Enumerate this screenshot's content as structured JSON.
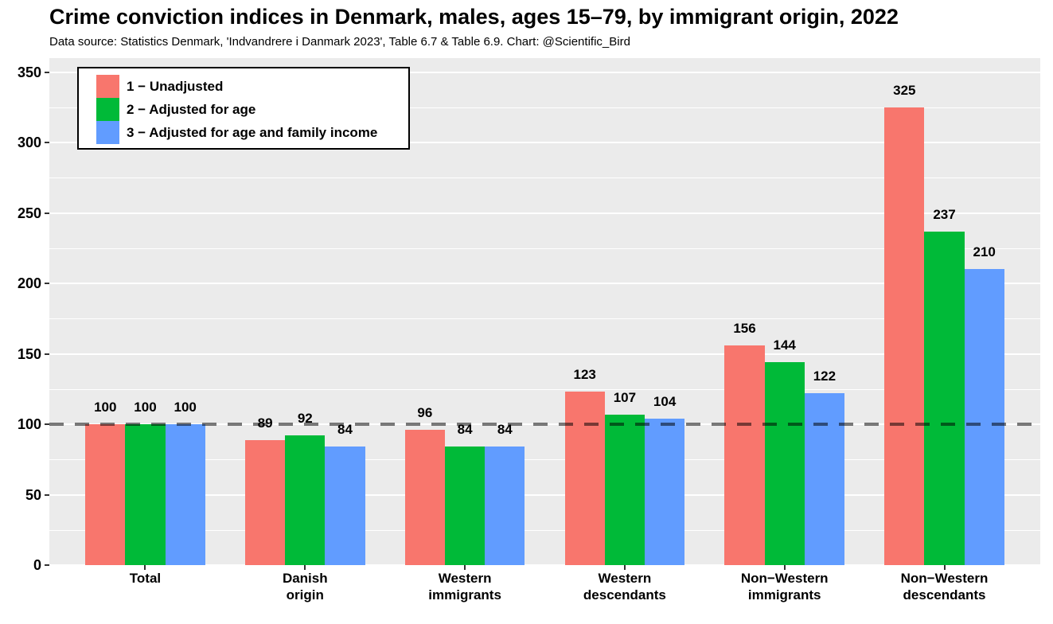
{
  "chart_data": {
    "type": "bar",
    "title": "Crime conviction indices in Denmark, males, ages 15–79, by immigrant origin, 2022",
    "subtitle": "Data source: Statistics Denmark, 'Indvandrere i Danmark 2023', Table 6.7 & Table 6.9. Chart: @Scientific_Bird",
    "categories": [
      "Total",
      "Danish\norigin",
      "Western\nimmigrants",
      "Western\ndescendants",
      "Non−Western\nimmigrants",
      "Non−Western\ndescendants"
    ],
    "series": [
      {
        "name": "1 − Unadjusted",
        "color": "#F8766D",
        "values": [
          100,
          89,
          96,
          123,
          156,
          325
        ]
      },
      {
        "name": "2 − Adjusted for age",
        "color": "#00BA38",
        "values": [
          100,
          92,
          84,
          107,
          144,
          237
        ]
      },
      {
        "name": "3 − Adjusted for age and family income",
        "color": "#619CFF",
        "values": [
          100,
          84,
          84,
          104,
          122,
          210
        ]
      }
    ],
    "y_ticks": [
      0,
      50,
      100,
      150,
      200,
      250,
      300,
      350
    ],
    "ylim": [
      0,
      360
    ],
    "reference_line": 100,
    "bar_labels": true,
    "grid": true,
    "legend_position": "top-left-inside",
    "panel_background": "#EBEBEB",
    "gridline_color": "#FFFFFF",
    "reference_line_color": "rgba(0,0,0,0.52)"
  }
}
